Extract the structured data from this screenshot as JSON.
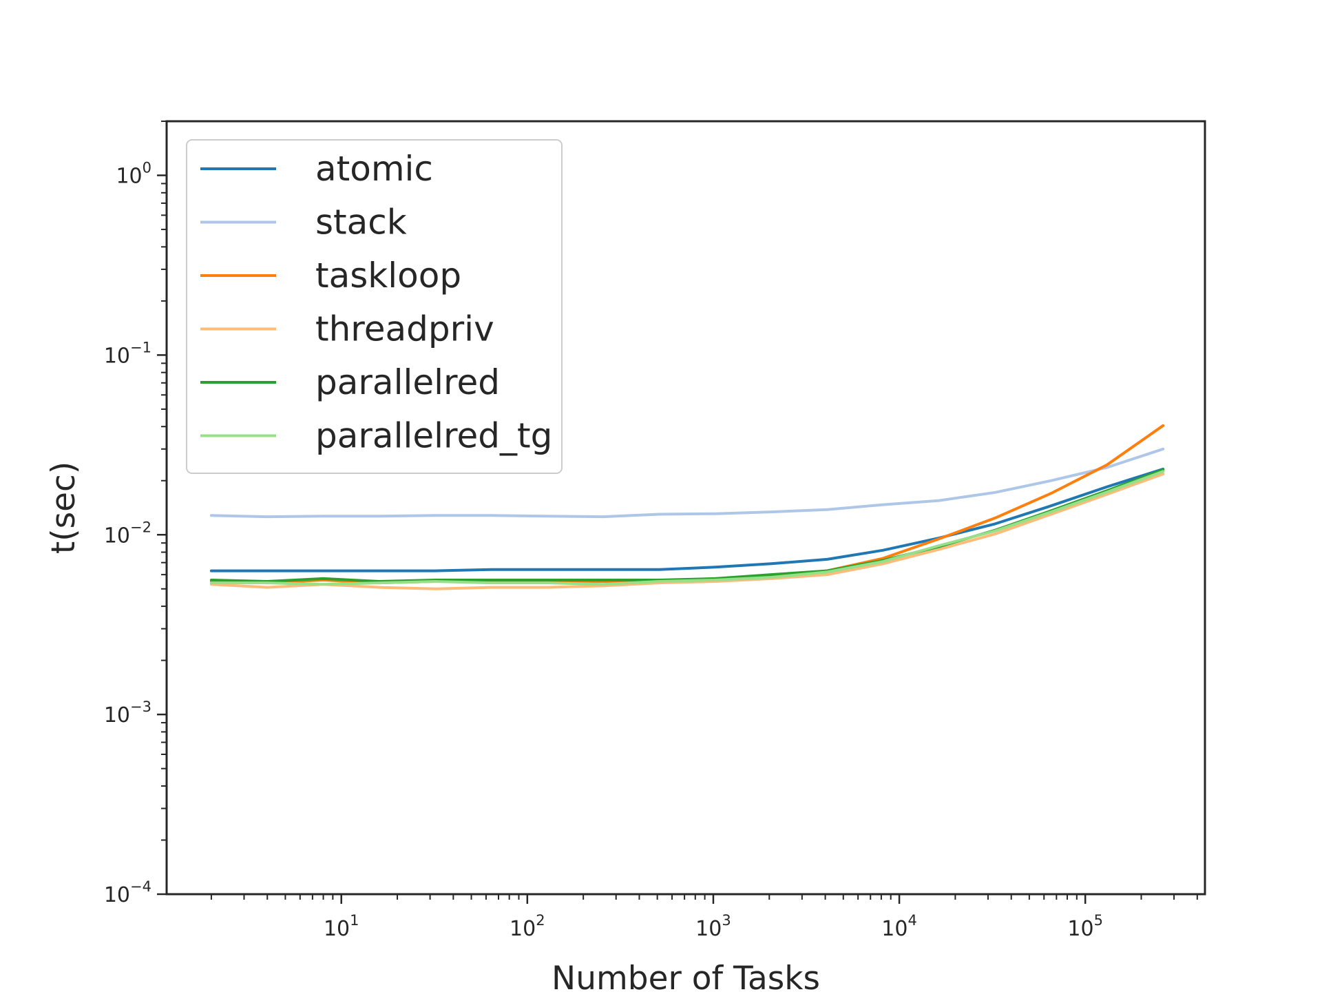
{
  "chart_data": {
    "type": "line",
    "title": "",
    "xlabel": "Number of Tasks",
    "ylabel": "t(sec)",
    "xscale": "log",
    "yscale": "log",
    "xlim": [
      1.15,
      440000
    ],
    "ylim": [
      0.0001,
      2
    ],
    "grid": false,
    "legend_position": "upper-left",
    "x_ticks": [
      {
        "base": "10",
        "exp": "1",
        "value": 10
      },
      {
        "base": "10",
        "exp": "2",
        "value": 100
      },
      {
        "base": "10",
        "exp": "3",
        "value": 1000
      },
      {
        "base": "10",
        "exp": "4",
        "value": 10000
      },
      {
        "base": "10",
        "exp": "5",
        "value": 100000
      }
    ],
    "y_ticks": [
      {
        "base": "10",
        "exp": "−4",
        "value": 0.0001
      },
      {
        "base": "10",
        "exp": "−3",
        "value": 0.001
      },
      {
        "base": "10",
        "exp": "−2",
        "value": 0.01
      },
      {
        "base": "10",
        "exp": "−1",
        "value": 0.1
      },
      {
        "base": "10",
        "exp": "0",
        "value": 1
      }
    ],
    "x": [
      2,
      4,
      8,
      16,
      32,
      64,
      128,
      256,
      512,
      1024,
      2048,
      4096,
      8192,
      16384,
      32768,
      65536,
      131072,
      262144
    ],
    "series": [
      {
        "name": "atomic",
        "color": "#1f77b4",
        "values": [
          0.0063,
          0.0063,
          0.0063,
          0.0063,
          0.0063,
          0.0064,
          0.0064,
          0.0064,
          0.0064,
          0.0066,
          0.0069,
          0.0073,
          0.0082,
          0.0096,
          0.0115,
          0.0145,
          0.0185,
          0.0232
        ]
      },
      {
        "name": "stack",
        "color": "#aec7e8",
        "values": [
          0.0128,
          0.0126,
          0.0127,
          0.0127,
          0.0128,
          0.0128,
          0.0127,
          0.0126,
          0.013,
          0.0131,
          0.0134,
          0.0138,
          0.0147,
          0.0155,
          0.0172,
          0.02,
          0.0237,
          0.03
        ]
      },
      {
        "name": "taskloop",
        "color": "#ff7f0e",
        "values": [
          0.0055,
          0.0054,
          0.0056,
          0.0054,
          0.0055,
          0.0055,
          0.0055,
          0.0055,
          0.0055,
          0.0056,
          0.0059,
          0.0063,
          0.0074,
          0.0095,
          0.0124,
          0.017,
          0.0245,
          0.0405
        ]
      },
      {
        "name": "threadpriv",
        "color": "#ffbb78",
        "values": [
          0.0053,
          0.0051,
          0.0053,
          0.0051,
          0.005,
          0.0051,
          0.0051,
          0.0052,
          0.0054,
          0.0055,
          0.0057,
          0.006,
          0.0069,
          0.0083,
          0.0101,
          0.013,
          0.0168,
          0.0218
        ]
      },
      {
        "name": "parallelred",
        "color": "#2ca02c",
        "values": [
          0.0056,
          0.0055,
          0.0057,
          0.0055,
          0.0056,
          0.0056,
          0.0056,
          0.0056,
          0.0056,
          0.0057,
          0.006,
          0.0063,
          0.0072,
          0.0086,
          0.0106,
          0.0136,
          0.0176,
          0.023
        ]
      },
      {
        "name": "parallelred_tg",
        "color": "#98df8a",
        "values": [
          0.0054,
          0.0054,
          0.0053,
          0.0054,
          0.0055,
          0.0054,
          0.0054,
          0.0053,
          0.0055,
          0.0056,
          0.0058,
          0.0062,
          0.0071,
          0.0087,
          0.0105,
          0.0134,
          0.0173,
          0.0225
        ]
      }
    ]
  }
}
